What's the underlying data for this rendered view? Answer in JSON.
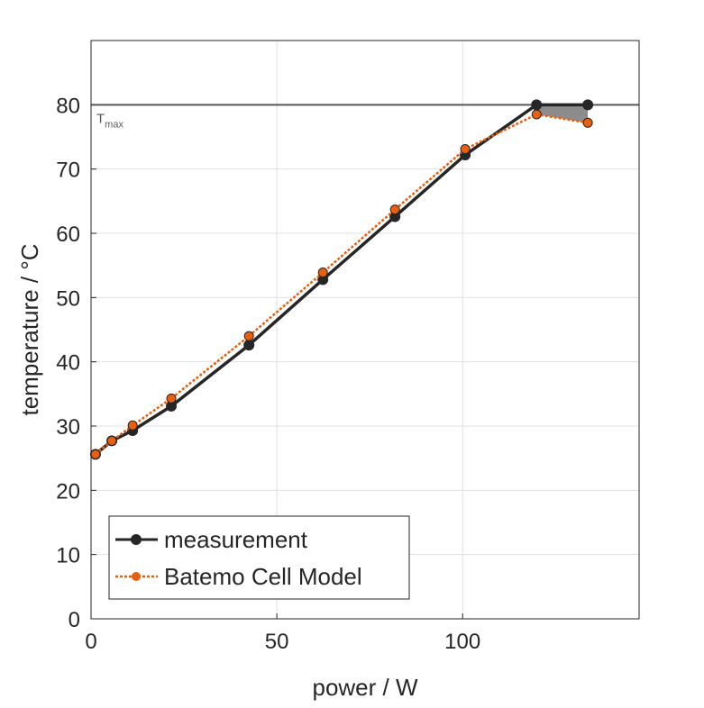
{
  "chart_data": {
    "type": "line",
    "title": "",
    "xlabel": "power / W",
    "ylabel": "temperature / °C",
    "xlim": [
      0,
      147.5
    ],
    "ylim": [
      0,
      90
    ],
    "xticks": [
      0,
      50,
      100
    ],
    "yticks": [
      0,
      10,
      20,
      30,
      40,
      50,
      60,
      70,
      80
    ],
    "grid": true,
    "legend_position": "bottom-left",
    "hline": {
      "y": 80,
      "label": "T",
      "label_sub": "max",
      "color": "#595959"
    },
    "fill_between": {
      "x_from": 119.9,
      "x_to": 133.7,
      "color": "#8c8c8c"
    },
    "series": [
      {
        "name": "measurement",
        "color": "#262626",
        "style": "solid",
        "x": [
          1.2,
          5.6,
          11.2,
          21.6,
          42.5,
          62.4,
          81.8,
          100.7,
          119.9,
          133.7
        ],
        "y": [
          25.6,
          27.7,
          29.3,
          33.1,
          42.6,
          52.8,
          62.6,
          72.2,
          80.0,
          80.0
        ]
      },
      {
        "name": "Batemo Cell Model",
        "color": "#e8600f",
        "style": "dotted",
        "x": [
          1.2,
          5.6,
          11.2,
          21.6,
          42.5,
          62.4,
          81.8,
          100.7,
          119.9,
          133.7
        ],
        "y": [
          25.6,
          27.7,
          30.1,
          34.3,
          44.0,
          53.9,
          63.7,
          73.1,
          78.5,
          77.2
        ]
      }
    ]
  }
}
